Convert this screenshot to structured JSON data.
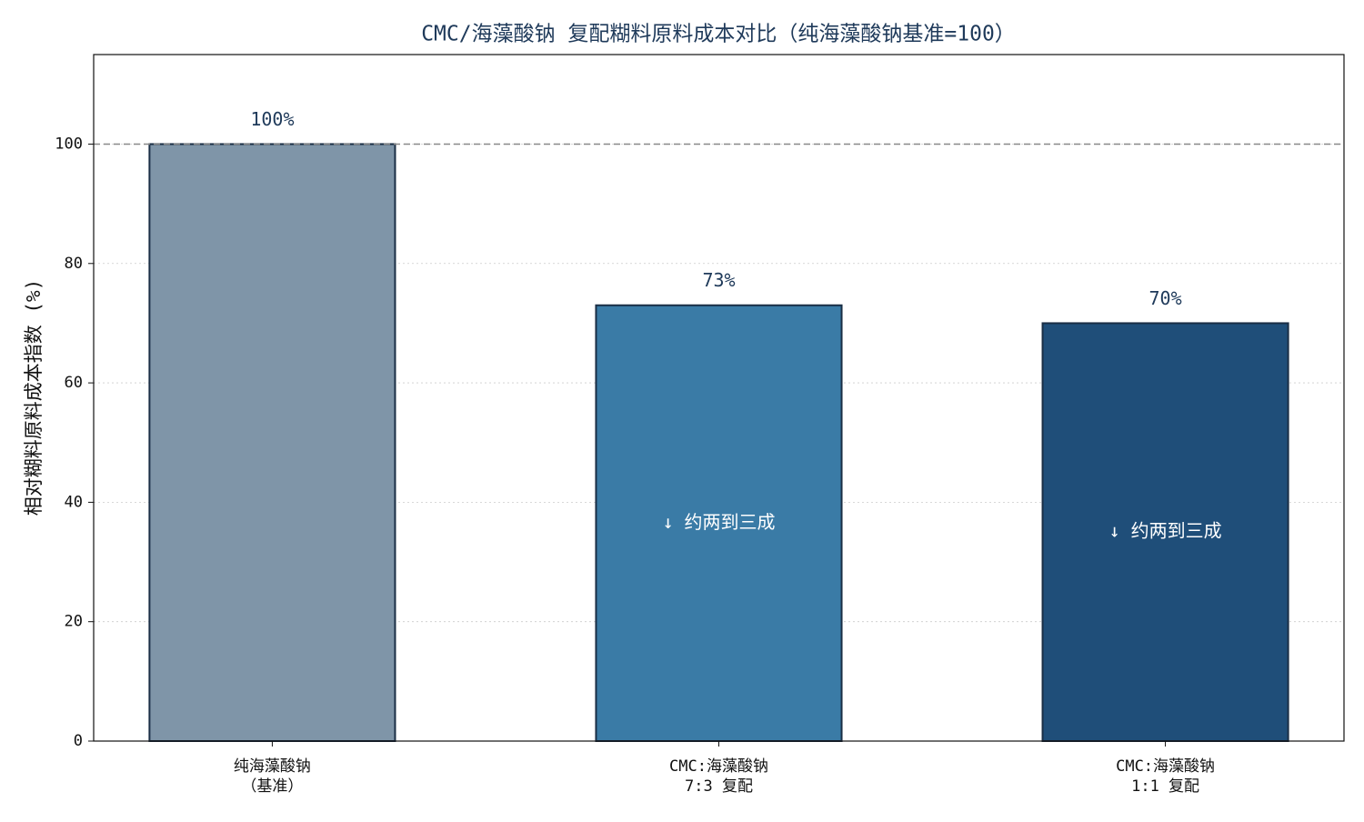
{
  "chart_data": {
    "type": "bar",
    "title": "CMC/海藻酸钠 复配糊料原料成本对比（纯海藻酸钠基准=100）",
    "y_label": "相对糊料原料成本指数 (%)",
    "categories": [
      [
        "纯海藻酸钠",
        "（基准）"
      ],
      [
        "CMC:海藻酸钠",
        "7:3 复配"
      ],
      [
        "CMC:海藻酸钠",
        "1:1 复配"
      ]
    ],
    "values": [
      100,
      73,
      70
    ],
    "value_labels": [
      "100%",
      "73%",
      "70%"
    ],
    "bar_annotations": [
      null,
      "↓ 约两到三成",
      "↓ 约两到三成"
    ],
    "colors": [
      "#7f95a8",
      "#3a7ba6",
      "#1f4e79"
    ],
    "edge_color": "#1a2e45",
    "reference_line": 100,
    "ylim": [
      0,
      115
    ],
    "yticks": [
      0,
      20,
      40,
      60,
      80,
      100
    ],
    "xlim": [
      -0.4,
      2.4
    ],
    "grid": true
  }
}
